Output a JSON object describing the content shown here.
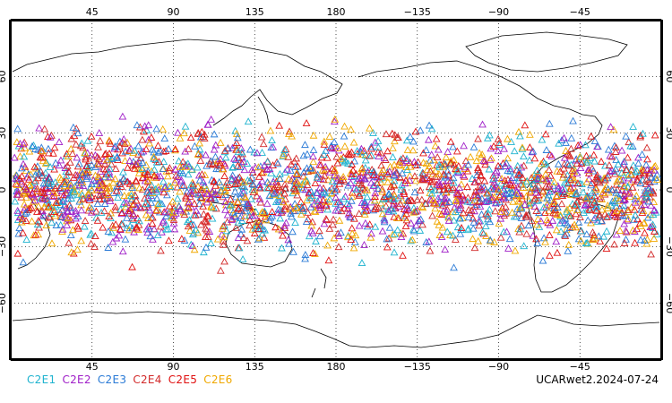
{
  "map": {
    "projection": "cylindrical equidistant, centered on 180",
    "lon_tick_labels_top": [
      "45",
      "90",
      "135",
      "180",
      "−135",
      "−90",
      "−45"
    ],
    "lon_tick_labels_bottom": [
      "45",
      "90",
      "135",
      "180",
      "−135",
      "−90",
      "−45"
    ],
    "lat_tick_labels": [
      "60",
      "30",
      "0",
      "−30",
      "−60"
    ],
    "gridlines": "dotted",
    "coastline_color": "#000000",
    "marker_shape": "open-triangle"
  },
  "legend": {
    "items": [
      {
        "label": "C2E1",
        "color": "#1fb3cf"
      },
      {
        "label": "C2E2",
        "color": "#a020c8"
      },
      {
        "label": "C2E3",
        "color": "#2a7ad6"
      },
      {
        "label": "C2E4",
        "color": "#d22a2a"
      },
      {
        "label": "C2E5",
        "color": "#e01010"
      },
      {
        "label": "C2E6",
        "color": "#f0a800"
      }
    ]
  },
  "caption": "UCARwet2.2024-07-24",
  "observation_band": {
    "lat_min": -45,
    "lat_max": 45
  }
}
